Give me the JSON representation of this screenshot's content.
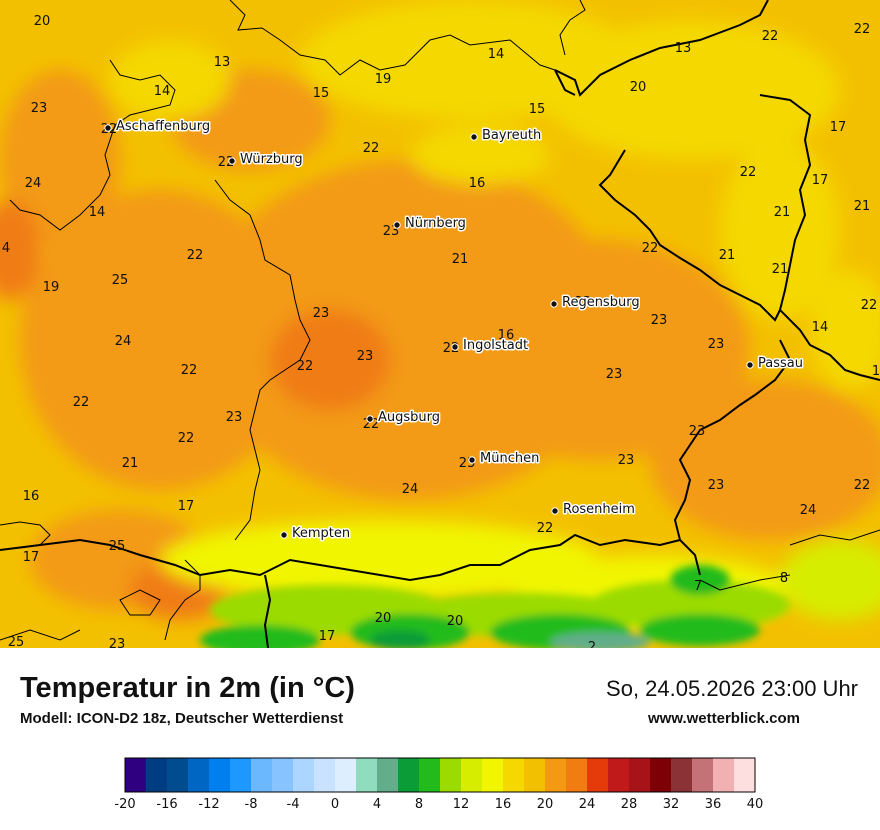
{
  "map": {
    "cities": [
      {
        "name": "Aschaffenburg"
      },
      {
        "name": "Würzburg"
      },
      {
        "name": "Bayreuth"
      },
      {
        "name": "Nürnberg"
      },
      {
        "name": "Regensburg"
      },
      {
        "name": "Ingolstadt"
      },
      {
        "name": "Passau"
      },
      {
        "name": "Augsburg"
      },
      {
        "name": "München"
      },
      {
        "name": "Rosenheim"
      },
      {
        "name": "Kempten"
      }
    ],
    "temperature_labels": [
      "20",
      "13",
      "14",
      "14",
      "15",
      "19",
      "15",
      "13",
      "20",
      "22",
      "22",
      "23",
      "22",
      "22",
      "22",
      "17",
      "24",
      "22",
      "16",
      "17",
      "14",
      "23",
      "21",
      "4",
      "22",
      "21",
      "25",
      "19",
      "22",
      "23",
      "16",
      "21",
      "22",
      "21",
      "24",
      "23",
      "14",
      "22",
      "22",
      "23",
      "23",
      "22",
      "23",
      "23",
      "21",
      "22",
      "23",
      "22",
      "22",
      "23",
      "23",
      "23",
      "16",
      "24",
      "23",
      "22",
      "17",
      "24",
      "22",
      "8",
      "17",
      "25",
      "20",
      "20",
      "17",
      "25",
      "23",
      "2",
      "7",
      "1",
      "21"
    ]
  },
  "footer": {
    "title": "Temperatur in 2m (in °C)",
    "model": "Modell: ICON-D2 18z, Deutscher Wetterdienst",
    "datetime": "So, 24.05.2026 23:00 Uhr",
    "website": "www.wetterblick.com"
  },
  "legend": {
    "min": -20,
    "max": 40,
    "step": 2,
    "tick_labels": [
      "-20",
      "-16",
      "-12",
      "-8",
      "-4",
      "0",
      "4",
      "8",
      "12",
      "16",
      "20",
      "24",
      "28",
      "32",
      "36",
      "40"
    ],
    "colors": [
      "#2f0080",
      "#003c82",
      "#004c8f",
      "#0066c4",
      "#0080ee",
      "#1c98ff",
      "#6cb8ff",
      "#87c4ff",
      "#acd6ff",
      "#c8e2ff",
      "#dceeff",
      "#8fdcbe",
      "#62ad8a",
      "#0c9c37",
      "#22bb1b",
      "#9bdb00",
      "#d7ed00",
      "#f1f500",
      "#f4d800",
      "#f3c000",
      "#f39a12",
      "#f07c12",
      "#e53b0b",
      "#c01a1a",
      "#a8131a",
      "#7c0006",
      "#8b3237",
      "#c47277",
      "#f1b0b1",
      "#fddfe0"
    ]
  }
}
